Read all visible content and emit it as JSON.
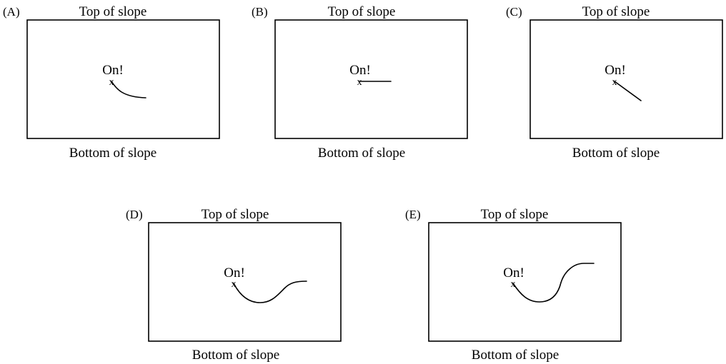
{
  "panels": [
    {
      "id": "A",
      "letter": "(A)",
      "top_label": "Top of slope",
      "bottom_label": "Bottom of slope",
      "start_label": "On!",
      "start_marker": "x",
      "trajectory": "curve-down-then-right"
    },
    {
      "id": "B",
      "letter": "(B)",
      "top_label": "Top of slope",
      "bottom_label": "Bottom of slope",
      "start_label": "On!",
      "start_marker": "x",
      "trajectory": "straight-right"
    },
    {
      "id": "C",
      "letter": "(C)",
      "top_label": "Top of slope",
      "bottom_label": "Bottom of slope",
      "start_label": "On!",
      "start_marker": "x",
      "trajectory": "straight-diagonal-down-right"
    },
    {
      "id": "D",
      "letter": "(D)",
      "top_label": "Top of slope",
      "bottom_label": "Bottom of slope",
      "start_label": "On!",
      "start_marker": "x",
      "trajectory": "dip-down-then-up-right"
    },
    {
      "id": "E",
      "letter": "(E)",
      "top_label": "Top of slope",
      "bottom_label": "Bottom of slope",
      "start_label": "On!",
      "start_marker": "x",
      "trajectory": "dip-down-then-up-higher"
    }
  ]
}
